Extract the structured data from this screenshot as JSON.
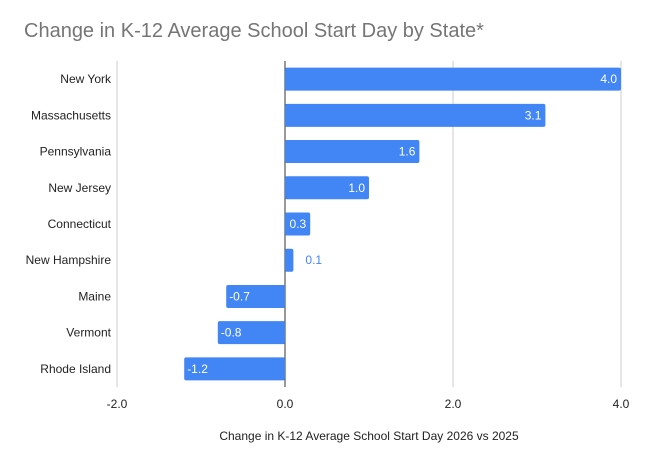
{
  "chart_data": {
    "type": "bar",
    "orientation": "horizontal",
    "title": "Change in K-12 Average School Start Day by State*",
    "xlabel": "Change in K-12 Average School Start Day 2026 vs 2025",
    "ylabel": "",
    "categories": [
      "New York",
      "Massachusetts",
      "Pennsylvania",
      "New Jersey",
      "Connecticut",
      "New Hampshire",
      "Maine",
      "Vermont",
      "Rhode Island"
    ],
    "values": [
      4.0,
      3.1,
      1.6,
      1.0,
      0.3,
      0.1,
      -0.7,
      -0.8,
      -1.2
    ],
    "value_labels": [
      "4.0",
      "3.1",
      "1.6",
      "1.0",
      "0.3",
      "0.1",
      "-0.7",
      "-0.8",
      "-1.2"
    ],
    "xlim": [
      -2.0,
      4.0
    ],
    "xticks": [
      -2.0,
      0.0,
      2.0,
      4.0
    ],
    "xtick_labels": [
      "-2.0",
      "0.0",
      "2.0",
      "4.0"
    ],
    "grid": true,
    "legend": "none",
    "bar_color": "#4285f4",
    "label_inside_color": "#ffffff",
    "label_outside_color": "#4285f4"
  }
}
